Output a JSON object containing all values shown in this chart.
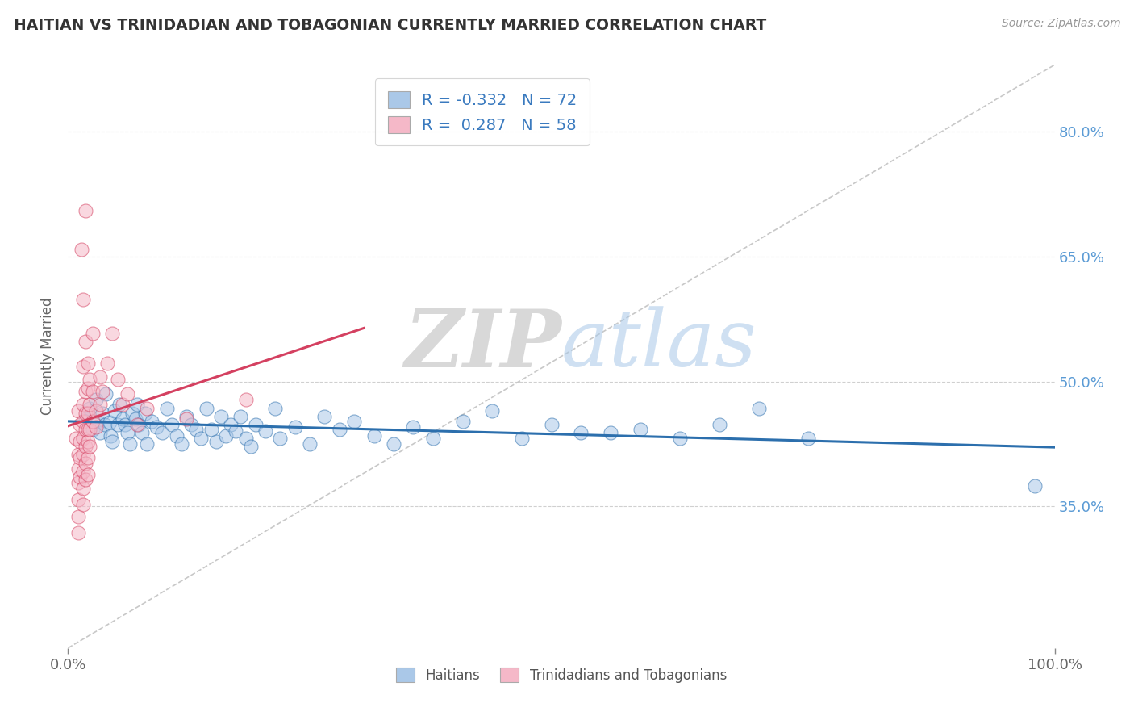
{
  "title": "HAITIAN VS TRINIDADIAN AND TOBAGONIAN CURRENTLY MARRIED CORRELATION CHART",
  "source": "Source: ZipAtlas.com",
  "ylabel": "Currently Married",
  "legend_label1": "Haitians",
  "legend_label2": "Trinidadians and Tobagonians",
  "R1": -0.332,
  "N1": 72,
  "R2": 0.287,
  "N2": 58,
  "color1": "#aac8e8",
  "color2": "#f5b8c8",
  "line_color1": "#2c6fad",
  "line_color2": "#d44060",
  "ref_line_color": "#c8c8c8",
  "xlim": [
    0.0,
    1.0
  ],
  "ylim": [
    0.18,
    0.88
  ],
  "yticks": [
    0.35,
    0.5,
    0.65,
    0.8
  ],
  "ytick_labels": [
    "35.0%",
    "50.0%",
    "65.0%",
    "80.0%"
  ],
  "xtick_labels": [
    "0.0%",
    "100.0%"
  ],
  "xticks": [
    0.0,
    1.0
  ],
  "watermark_zip": "ZIP",
  "watermark_atlas": "atlas",
  "background_color": "#ffffff",
  "blue_dots": [
    [
      0.018,
      0.455
    ],
    [
      0.022,
      0.468
    ],
    [
      0.025,
      0.442
    ],
    [
      0.028,
      0.478
    ],
    [
      0.03,
      0.452
    ],
    [
      0.032,
      0.438
    ],
    [
      0.035,
      0.462
    ],
    [
      0.037,
      0.448
    ],
    [
      0.038,
      0.485
    ],
    [
      0.042,
      0.451
    ],
    [
      0.043,
      0.435
    ],
    [
      0.045,
      0.428
    ],
    [
      0.047,
      0.465
    ],
    [
      0.05,
      0.448
    ],
    [
      0.052,
      0.472
    ],
    [
      0.055,
      0.455
    ],
    [
      0.058,
      0.448
    ],
    [
      0.06,
      0.438
    ],
    [
      0.063,
      0.425
    ],
    [
      0.065,
      0.462
    ],
    [
      0.068,
      0.455
    ],
    [
      0.07,
      0.472
    ],
    [
      0.072,
      0.448
    ],
    [
      0.075,
      0.438
    ],
    [
      0.078,
      0.462
    ],
    [
      0.08,
      0.425
    ],
    [
      0.085,
      0.452
    ],
    [
      0.09,
      0.445
    ],
    [
      0.095,
      0.438
    ],
    [
      0.1,
      0.468
    ],
    [
      0.105,
      0.448
    ],
    [
      0.11,
      0.435
    ],
    [
      0.115,
      0.425
    ],
    [
      0.12,
      0.458
    ],
    [
      0.125,
      0.448
    ],
    [
      0.13,
      0.442
    ],
    [
      0.135,
      0.432
    ],
    [
      0.14,
      0.468
    ],
    [
      0.145,
      0.442
    ],
    [
      0.15,
      0.428
    ],
    [
      0.155,
      0.458
    ],
    [
      0.16,
      0.435
    ],
    [
      0.165,
      0.448
    ],
    [
      0.17,
      0.44
    ],
    [
      0.175,
      0.458
    ],
    [
      0.18,
      0.432
    ],
    [
      0.185,
      0.422
    ],
    [
      0.19,
      0.448
    ],
    [
      0.2,
      0.44
    ],
    [
      0.21,
      0.468
    ],
    [
      0.215,
      0.432
    ],
    [
      0.23,
      0.445
    ],
    [
      0.245,
      0.425
    ],
    [
      0.26,
      0.458
    ],
    [
      0.275,
      0.442
    ],
    [
      0.29,
      0.452
    ],
    [
      0.31,
      0.435
    ],
    [
      0.33,
      0.425
    ],
    [
      0.35,
      0.445
    ],
    [
      0.37,
      0.432
    ],
    [
      0.4,
      0.452
    ],
    [
      0.43,
      0.465
    ],
    [
      0.46,
      0.432
    ],
    [
      0.49,
      0.448
    ],
    [
      0.52,
      0.438
    ],
    [
      0.55,
      0.438
    ],
    [
      0.58,
      0.442
    ],
    [
      0.62,
      0.432
    ],
    [
      0.66,
      0.448
    ],
    [
      0.7,
      0.468
    ],
    [
      0.75,
      0.432
    ],
    [
      0.98,
      0.375
    ]
  ],
  "pink_dots": [
    [
      0.008,
      0.432
    ],
    [
      0.01,
      0.465
    ],
    [
      0.01,
      0.412
    ],
    [
      0.01,
      0.395
    ],
    [
      0.01,
      0.378
    ],
    [
      0.01,
      0.358
    ],
    [
      0.01,
      0.338
    ],
    [
      0.01,
      0.318
    ],
    [
      0.012,
      0.448
    ],
    [
      0.012,
      0.428
    ],
    [
      0.012,
      0.408
    ],
    [
      0.012,
      0.385
    ],
    [
      0.014,
      0.658
    ],
    [
      0.015,
      0.598
    ],
    [
      0.015,
      0.518
    ],
    [
      0.015,
      0.472
    ],
    [
      0.015,
      0.452
    ],
    [
      0.015,
      0.432
    ],
    [
      0.015,
      0.412
    ],
    [
      0.015,
      0.392
    ],
    [
      0.015,
      0.372
    ],
    [
      0.015,
      0.352
    ],
    [
      0.018,
      0.705
    ],
    [
      0.018,
      0.548
    ],
    [
      0.018,
      0.488
    ],
    [
      0.018,
      0.462
    ],
    [
      0.018,
      0.442
    ],
    [
      0.018,
      0.422
    ],
    [
      0.018,
      0.402
    ],
    [
      0.018,
      0.382
    ],
    [
      0.02,
      0.522
    ],
    [
      0.02,
      0.492
    ],
    [
      0.02,
      0.462
    ],
    [
      0.02,
      0.442
    ],
    [
      0.02,
      0.428
    ],
    [
      0.02,
      0.408
    ],
    [
      0.02,
      0.388
    ],
    [
      0.022,
      0.502
    ],
    [
      0.022,
      0.472
    ],
    [
      0.022,
      0.442
    ],
    [
      0.022,
      0.422
    ],
    [
      0.025,
      0.558
    ],
    [
      0.025,
      0.488
    ],
    [
      0.025,
      0.452
    ],
    [
      0.028,
      0.465
    ],
    [
      0.028,
      0.445
    ],
    [
      0.032,
      0.505
    ],
    [
      0.032,
      0.472
    ],
    [
      0.035,
      0.488
    ],
    [
      0.04,
      0.522
    ],
    [
      0.045,
      0.558
    ],
    [
      0.05,
      0.502
    ],
    [
      0.055,
      0.472
    ],
    [
      0.06,
      0.485
    ],
    [
      0.07,
      0.448
    ],
    [
      0.08,
      0.468
    ],
    [
      0.12,
      0.455
    ],
    [
      0.18,
      0.478
    ]
  ]
}
